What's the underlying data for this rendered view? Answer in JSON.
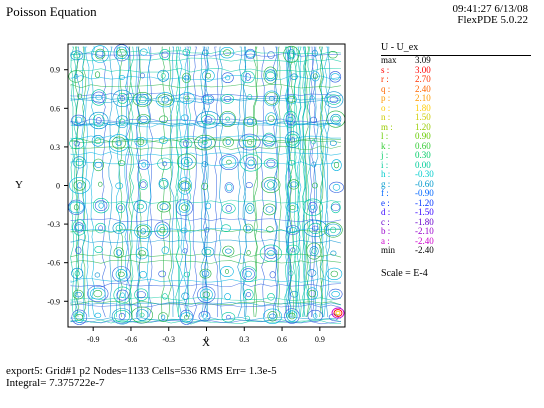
{
  "header": {
    "title": "Poisson Equation",
    "time": "09:41:27 6/13/08",
    "version": "FlexPDE 5.0.22"
  },
  "chart_data": {
    "type": "contour",
    "xlabel": "X",
    "ylabel": "Y",
    "xlim": [
      -1.1,
      1.1
    ],
    "ylim": [
      -1.1,
      1.1
    ],
    "xticks": [
      "-0.9",
      "-0.6",
      "-0.3",
      "0",
      "0.3",
      "0.6",
      "0.9"
    ],
    "yticks": [
      "0.9",
      "0.6",
      "0.3",
      "0",
      "-0.3",
      "-0.6",
      "-0.9"
    ],
    "legend_title": "U - U_ex",
    "levels": [
      {
        "key": "max",
        "value": "3.09",
        "color": "#000000"
      },
      {
        "key": "s :",
        "value": "3.00",
        "color": "#ff0000"
      },
      {
        "key": "r :",
        "value": "2.70",
        "color": "#ff3300"
      },
      {
        "key": "q :",
        "value": "2.40",
        "color": "#ff6600"
      },
      {
        "key": "p :",
        "value": "2.10",
        "color": "#ff9900"
      },
      {
        "key": "o :",
        "value": "1.80",
        "color": "#ffcc00"
      },
      {
        "key": "n :",
        "value": "1.50",
        "color": "#cccc00"
      },
      {
        "key": "m :",
        "value": "1.20",
        "color": "#99cc00"
      },
      {
        "key": "l :",
        "value": "0.90",
        "color": "#66cc00"
      },
      {
        "key": "k :",
        "value": "0.60",
        "color": "#33cc33"
      },
      {
        "key": "j :",
        "value": "0.30",
        "color": "#00cc66"
      },
      {
        "key": "i :",
        "value": "0.00",
        "color": "#00cc99"
      },
      {
        "key": "h :",
        "value": "-0.30",
        "color": "#00cccc"
      },
      {
        "key": "g :",
        "value": "-0.60",
        "color": "#0099cc"
      },
      {
        "key": "f :",
        "value": "-0.90",
        "color": "#0066ff"
      },
      {
        "key": "e :",
        "value": "-1.20",
        "color": "#0033ff"
      },
      {
        "key": "d :",
        "value": "-1.50",
        "color": "#3300ff"
      },
      {
        "key": "c :",
        "value": "-1.80",
        "color": "#6600cc"
      },
      {
        "key": "b :",
        "value": "-2.10",
        "color": "#9900cc"
      },
      {
        "key": "a :",
        "value": "-2.40",
        "color": "#cc00cc"
      },
      {
        "key": "min",
        "value": "-2.40",
        "color": "#000000"
      }
    ],
    "scale": "Scale = E-4"
  },
  "footer": {
    "line1": "export5:  Grid#1  p2  Nodes=1133 Cells=536 RMS Err= 1.3e-5",
    "line2": "Integral=  7.375722e-7"
  },
  "style": {
    "line_colors": [
      "#00c8a0",
      "#0090d0",
      "#20b040",
      "#00b0e0",
      "#3060e0"
    ]
  }
}
